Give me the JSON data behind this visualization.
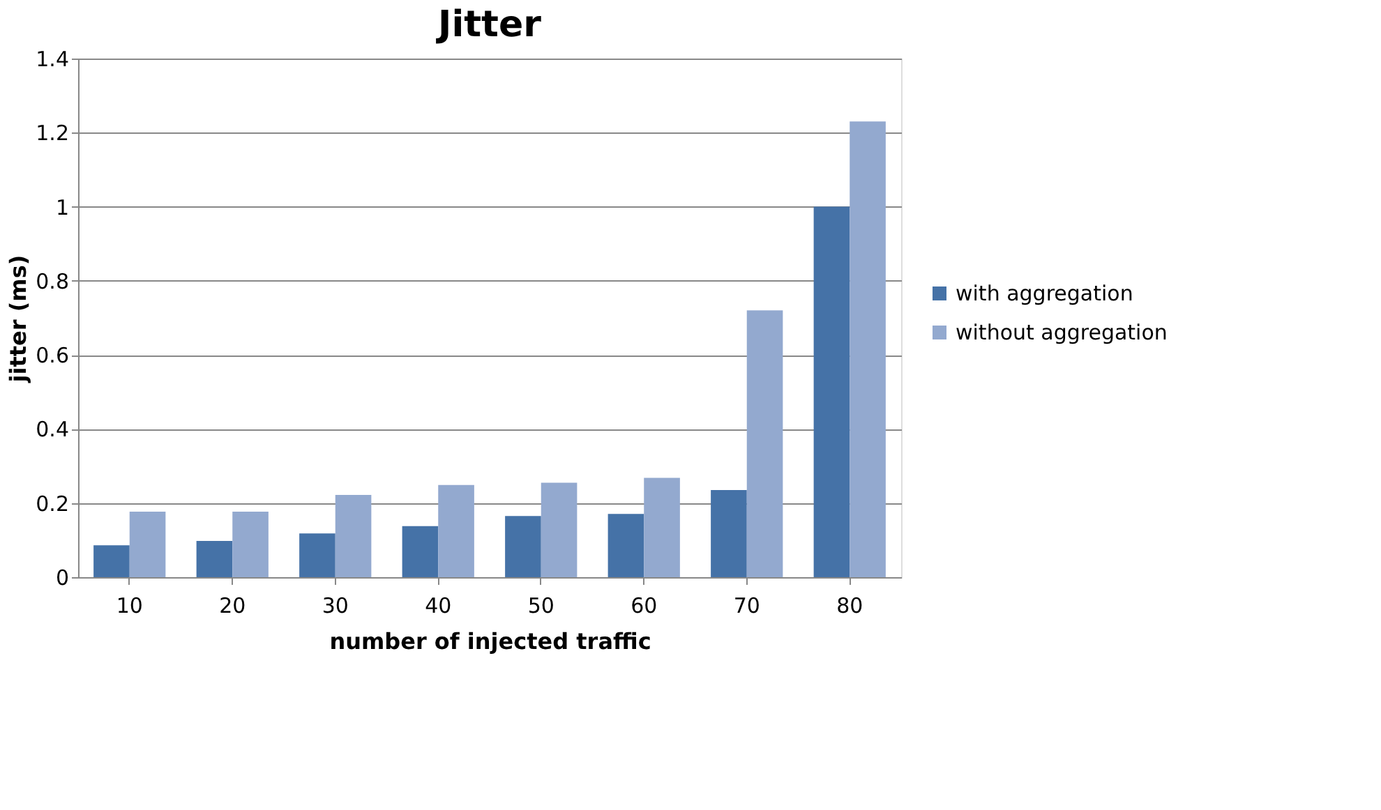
{
  "chart_data": {
    "type": "bar",
    "title": "Jitter",
    "xlabel": "number of injected traffic",
    "ylabel": "jitter (ms)",
    "categories": [
      "10",
      "20",
      "30",
      "40",
      "50",
      "60",
      "70",
      "80"
    ],
    "series": [
      {
        "name": "with aggregation",
        "color": "#4572a7",
        "values": [
          0.086,
          0.098,
          0.118,
          0.138,
          0.165,
          0.171,
          0.235,
          1.0
        ]
      },
      {
        "name": "without aggregation",
        "color": "#93a9cf",
        "values": [
          0.177,
          0.177,
          0.222,
          0.249,
          0.255,
          0.268,
          0.72,
          1.23
        ]
      }
    ],
    "ylim": [
      0,
      1.4
    ],
    "yticks": [
      0,
      0.2,
      0.4,
      0.6,
      0.8,
      1,
      1.2,
      1.4
    ],
    "grid": "y",
    "legend": "right"
  }
}
